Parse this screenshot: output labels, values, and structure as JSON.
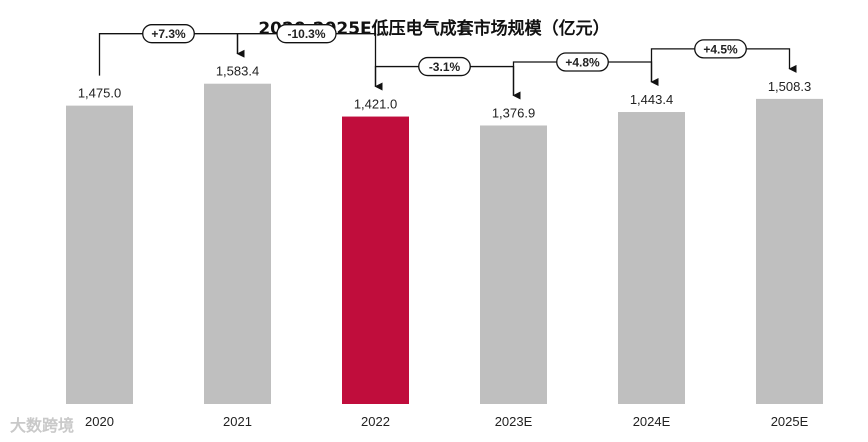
{
  "chart_data": {
    "type": "bar",
    "title": "2020-2025E低压电气成套市场规模（亿元）",
    "categories": [
      "2020",
      "2021",
      "2022",
      "2023E",
      "2024E",
      "2025E"
    ],
    "values": [
      1475.0,
      1583.4,
      1421.0,
      1376.9,
      1443.4,
      1508.3
    ],
    "value_labels": [
      "1,475.0",
      "1,583.4",
      "1,421.0",
      "1,376.9",
      "1,443.4",
      "1,508.3"
    ],
    "growth_labels": [
      "+7.3%",
      "-10.3%",
      "-3.1%",
      "+4.8%",
      "+4.5%"
    ],
    "highlight_index": 2,
    "ylim": [
      0,
      1750
    ],
    "grid": false,
    "legend": "none",
    "xlabel": "",
    "ylabel": ""
  },
  "colors": {
    "bar": "#bfbfbf",
    "highlight": "#c00d3c",
    "text": "#222222",
    "arrow": "#111111"
  },
  "watermark": "大数跨境"
}
